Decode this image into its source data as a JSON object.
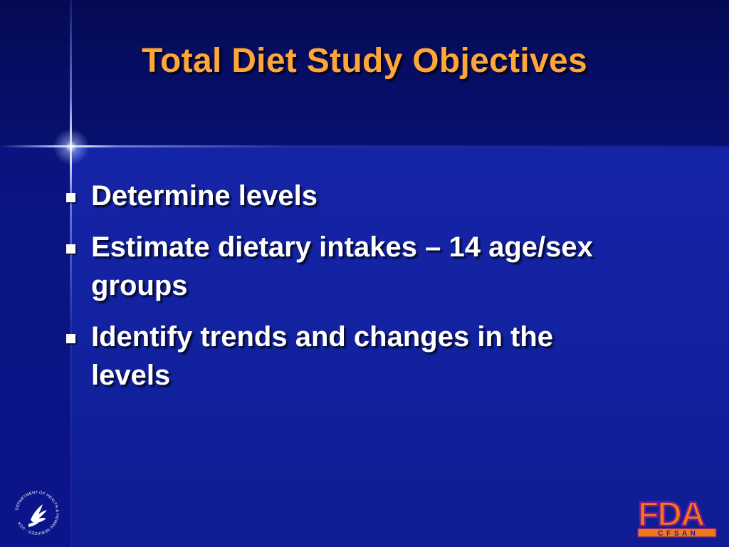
{
  "slide": {
    "title": "Total Diet Study Objectives",
    "bullets": [
      {
        "text": "Determine levels"
      },
      {
        "text": "Estimate dietary intakes – 14 age/sex groups"
      },
      {
        "text": "Identify trends and changes in the levels"
      }
    ]
  },
  "logos": {
    "hhs": {
      "text": "DEPARTMENT OF HEALTH & HUMAN SERVICES · USA"
    },
    "fda": {
      "wordmark": "FDA",
      "subtext": "C F S A N"
    }
  },
  "colors": {
    "title": "#ffa63a",
    "text": "#ffffff",
    "background": "#0e1a8c",
    "fda_fill": "#f07a1a",
    "fda_outline": "#7a1a8a"
  }
}
